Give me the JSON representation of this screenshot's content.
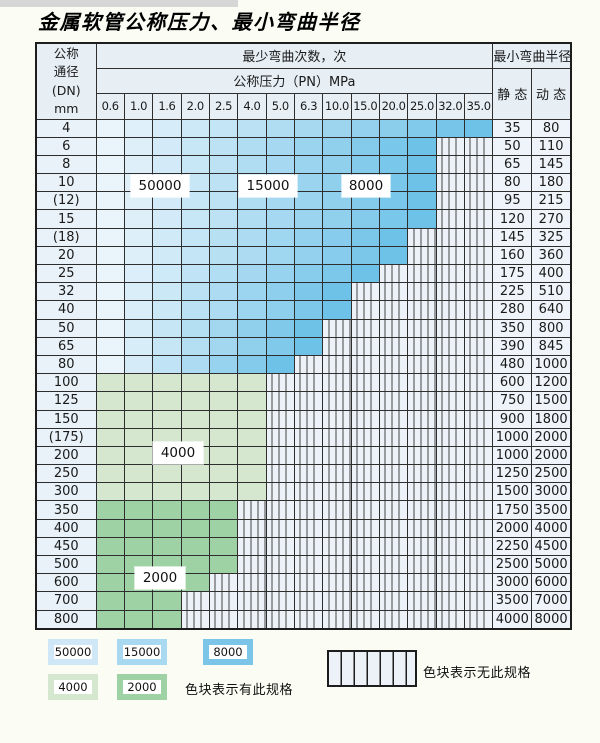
{
  "title": "金属软管公称压力、最小弯曲半径",
  "table": {
    "dn_header_lines": [
      "公称",
      "通径",
      "(DN)",
      "mm"
    ],
    "cycles_header": "最少弯曲次数，次",
    "pressure_header": "公称压力（PN）MPa",
    "radius_header": "最小弯曲半径",
    "static_label": "静 态",
    "dynamic_label": "动 态",
    "pressure_columns": [
      "0.6",
      "1.0",
      "1.6",
      "2.0",
      "2.5",
      "4.0",
      "5.0",
      "6.3",
      "10.0",
      "15.0",
      "20.0",
      "25.0",
      "32.0",
      "35.0"
    ],
    "rows": [
      {
        "dn": "4",
        "colored": 14,
        "zone": "blue",
        "max_pn": "35.0",
        "static": "35",
        "dynamic": "80"
      },
      {
        "dn": "6",
        "colored": 12,
        "zone": "blue",
        "max_pn": "25.0",
        "static": "50",
        "dynamic": "110"
      },
      {
        "dn": "8",
        "colored": 12,
        "zone": "blue",
        "max_pn": "25.0",
        "static": "65",
        "dynamic": "145"
      },
      {
        "dn": "10",
        "colored": 12,
        "zone": "blue",
        "max_pn": "25.0",
        "static": "80",
        "dynamic": "180"
      },
      {
        "dn": "(12)",
        "colored": 12,
        "zone": "blue",
        "max_pn": "25.0",
        "static": "95",
        "dynamic": "215"
      },
      {
        "dn": "15",
        "colored": 12,
        "zone": "blue",
        "max_pn": "25.0",
        "static": "120",
        "dynamic": "270"
      },
      {
        "dn": "(18)",
        "colored": 11,
        "zone": "blue",
        "max_pn": "20.0",
        "static": "145",
        "dynamic": "325"
      },
      {
        "dn": "20",
        "colored": 11,
        "zone": "blue",
        "max_pn": "20.0",
        "static": "160",
        "dynamic": "360"
      },
      {
        "dn": "25",
        "colored": 10,
        "zone": "blue",
        "max_pn": "15.0",
        "static": "175",
        "dynamic": "400"
      },
      {
        "dn": "32",
        "colored": 9,
        "zone": "blue",
        "max_pn": "10.0",
        "static": "225",
        "dynamic": "510"
      },
      {
        "dn": "40",
        "colored": 9,
        "zone": "blue",
        "max_pn": "10.0",
        "static": "280",
        "dynamic": "640"
      },
      {
        "dn": "50",
        "colored": 8,
        "zone": "blue",
        "max_pn": "6.3",
        "static": "350",
        "dynamic": "800"
      },
      {
        "dn": "65",
        "colored": 8,
        "zone": "blue",
        "max_pn": "6.3",
        "static": "390",
        "dynamic": "845"
      },
      {
        "dn": "80",
        "colored": 7,
        "zone": "blue",
        "max_pn": "5.0",
        "static": "480",
        "dynamic": "1000"
      },
      {
        "dn": "100",
        "colored": 6,
        "zone": "green4000",
        "max_pn": "4.0",
        "static": "600",
        "dynamic": "1200"
      },
      {
        "dn": "125",
        "colored": 6,
        "zone": "green4000",
        "max_pn": "4.0",
        "static": "750",
        "dynamic": "1500"
      },
      {
        "dn": "150",
        "colored": 6,
        "zone": "green4000",
        "max_pn": "4.0",
        "static": "900",
        "dynamic": "1800"
      },
      {
        "dn": "(175)",
        "colored": 6,
        "zone": "green4000",
        "max_pn": "4.0",
        "static": "1000",
        "dynamic": "2000"
      },
      {
        "dn": "200",
        "colored": 6,
        "zone": "green4000",
        "max_pn": "4.0",
        "static": "1000",
        "dynamic": "2000"
      },
      {
        "dn": "250",
        "colored": 6,
        "zone": "green4000",
        "max_pn": "4.0",
        "static": "1250",
        "dynamic": "2500"
      },
      {
        "dn": "300",
        "colored": 6,
        "zone": "green4000",
        "max_pn": "4.0",
        "static": "1500",
        "dynamic": "3000"
      },
      {
        "dn": "350",
        "colored": 5,
        "zone": "green2000",
        "max_pn": "2.5",
        "static": "1750",
        "dynamic": "3500"
      },
      {
        "dn": "400",
        "colored": 5,
        "zone": "green2000",
        "max_pn": "2.5",
        "static": "2000",
        "dynamic": "4000"
      },
      {
        "dn": "450",
        "colored": 5,
        "zone": "green2000",
        "max_pn": "2.5",
        "static": "2250",
        "dynamic": "4500"
      },
      {
        "dn": "500",
        "colored": 5,
        "zone": "green2000",
        "max_pn": "2.5",
        "static": "2500",
        "dynamic": "5000"
      },
      {
        "dn": "600",
        "colored": 4,
        "zone": "green2000",
        "max_pn": "2.0",
        "static": "3000",
        "dynamic": "6000"
      },
      {
        "dn": "700",
        "colored": 3,
        "zone": "green2000",
        "max_pn": "1.6",
        "static": "3500",
        "dynamic": "7000"
      },
      {
        "dn": "800",
        "colored": 3,
        "zone": "green2000",
        "max_pn": "1.6",
        "static": "4000",
        "dynamic": "8000"
      }
    ]
  },
  "legend": {
    "has_spec_note": "色块表示有此规格",
    "no_spec_note": "色块表示无此规格",
    "swatches": [
      {
        "label": "50000",
        "color": "#cfe7f7"
      },
      {
        "label": "15000",
        "color": "#a9d9f0"
      },
      {
        "label": "8000",
        "color": "#7cc5e9"
      },
      {
        "label": "4000",
        "color": "#d6e7d0"
      },
      {
        "label": "2000",
        "color": "#9ed2a4"
      }
    ]
  },
  "colors": {
    "cell_blue_light": "#e9f4fb",
    "cell_blue_dark": "#6ec2e8",
    "green_4000": "#d6e7d0",
    "green_2000": "#9ed2a4",
    "no_spec_bg": "#edf2f8"
  }
}
